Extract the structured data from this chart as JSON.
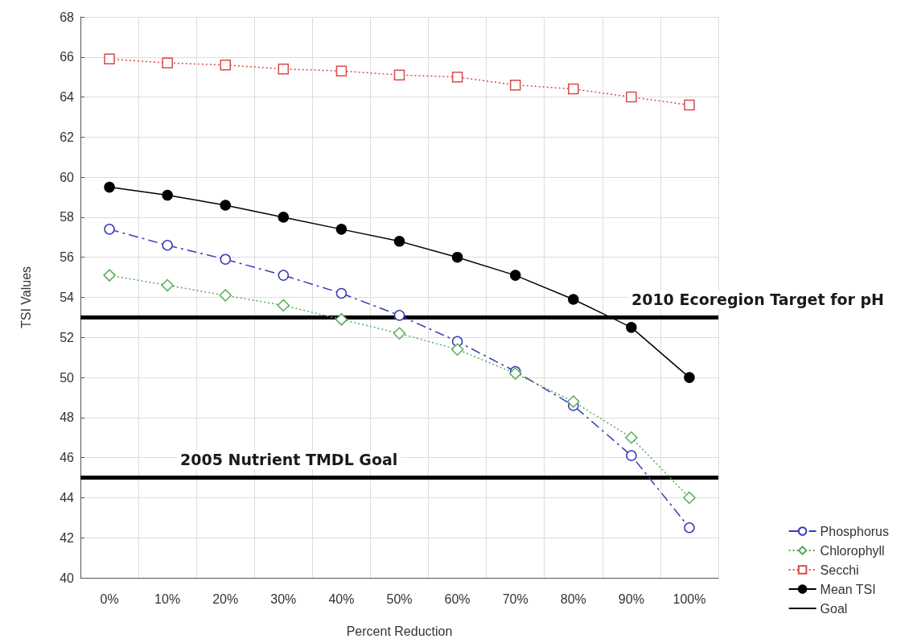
{
  "chart_data": {
    "type": "line",
    "xlabel": "Percent Reduction",
    "ylabel": "TSI Values",
    "categories": [
      "0%",
      "10%",
      "20%",
      "30%",
      "40%",
      "50%",
      "60%",
      "70%",
      "80%",
      "90%",
      "100%"
    ],
    "series": [
      {
        "name": "Phosphorus",
        "color": "#3a3ab8",
        "marker": "circle",
        "line_style": "dashed",
        "values": [
          57.4,
          56.6,
          55.9,
          55.1,
          54.2,
          53.1,
          51.8,
          50.3,
          48.6,
          46.1,
          42.5
        ]
      },
      {
        "name": "Chlorophyll",
        "color": "#5aaa5a",
        "marker": "diamond",
        "line_style": "dotted",
        "values": [
          55.1,
          54.6,
          54.1,
          53.6,
          52.9,
          52.2,
          51.4,
          50.2,
          48.8,
          47.0,
          44.0
        ]
      },
      {
        "name": "Secchi",
        "color": "#d94a4a",
        "marker": "square",
        "line_style": "dotted",
        "values": [
          65.9,
          65.7,
          65.6,
          65.4,
          65.3,
          65.1,
          65.0,
          64.6,
          64.4,
          64.0,
          63.6
        ]
      },
      {
        "name": "Mean TSI",
        "color": "#000000",
        "marker": "circle",
        "line_style": "solid",
        "values": [
          59.5,
          59.1,
          58.6,
          58.0,
          57.4,
          56.8,
          56.0,
          55.1,
          53.9,
          52.5,
          50.0
        ]
      },
      {
        "name": "Goal",
        "color": "#000000",
        "marker": "none",
        "line_style": "solid",
        "values": [
          null,
          null,
          null,
          null,
          null,
          null,
          null,
          null,
          null,
          null,
          null
        ]
      }
    ],
    "ref_lines": [
      {
        "axis": "y",
        "value": 53,
        "label": "2010 Ecoregion Target for pH",
        "color": "#000000"
      },
      {
        "axis": "y",
        "value": 45,
        "label": "2005 Nutrient TMDL Goal",
        "color": "#000000"
      }
    ],
    "ylim": [
      40,
      68
    ],
    "yticks": [
      40,
      42,
      44,
      46,
      48,
      50,
      52,
      54,
      56,
      58,
      60,
      62,
      64,
      66,
      68
    ],
    "grid": true,
    "legend": "bottom right"
  }
}
